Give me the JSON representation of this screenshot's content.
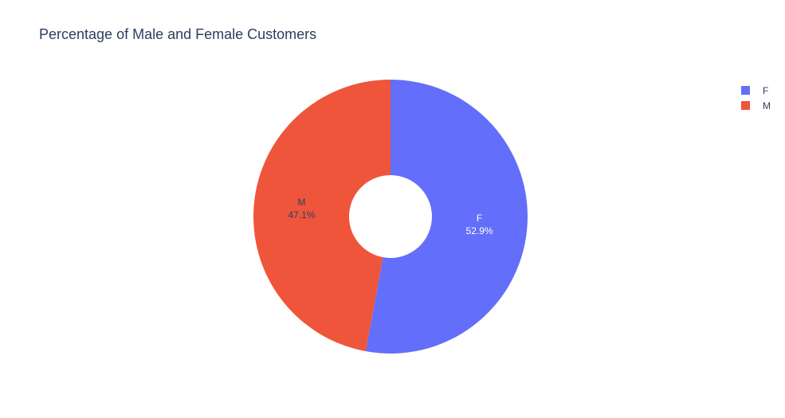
{
  "chart_data": {
    "type": "pie",
    "title": "Percentage of Male and Female Customers",
    "hole": true,
    "labels": [
      "F",
      "M"
    ],
    "values": [
      52.9,
      47.1
    ],
    "percent_labels": [
      "52.9%",
      "47.1%"
    ],
    "colors": [
      "#636efa",
      "#ef553b"
    ],
    "label_colors": [
      "#ffffff",
      "#2a3f5f"
    ],
    "legend": {
      "position": "top-right",
      "entries": [
        "F",
        "M"
      ]
    }
  }
}
